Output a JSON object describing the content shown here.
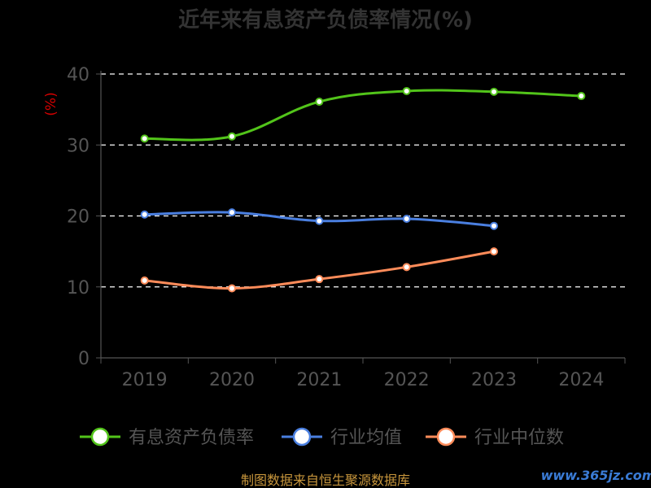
{
  "chart_data": {
    "type": "line",
    "title": "近年来有息资产负债率情况(%)",
    "ylabel": "(%)",
    "categories": [
      "2019",
      "2020",
      "2021",
      "2022",
      "2023",
      "2024"
    ],
    "ylim": [
      0,
      40
    ],
    "yticks": [
      0,
      10,
      20,
      30,
      40
    ],
    "grid": "horizontal-dashed",
    "legend_position": "bottom",
    "series": [
      {
        "name": "有息资产负债率",
        "color": "#52c41a",
        "values": [
          30.9,
          31.2,
          36.1,
          37.6,
          37.5,
          36.9
        ]
      },
      {
        "name": "行业均值",
        "color": "#4a7fe0",
        "values": [
          20.2,
          20.5,
          19.3,
          19.6,
          18.6,
          null
        ]
      },
      {
        "name": "行业中位数",
        "color": "#ff8c5a",
        "values": [
          10.9,
          9.8,
          11.1,
          12.8,
          15.0,
          null
        ]
      }
    ]
  },
  "footer": {
    "source": "制图数据来自恒生聚源数据库",
    "watermark": "www.365jz.com"
  }
}
